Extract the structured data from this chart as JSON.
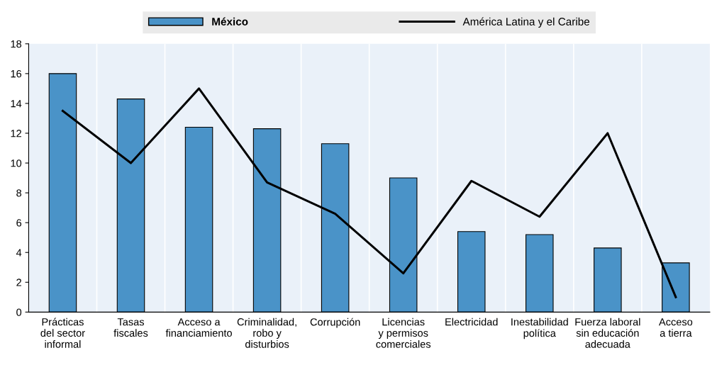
{
  "chart_data": {
    "type": "bar",
    "categories": [
      "Prácticas\ndel sector\ninformal",
      "Tasas\nfiscales",
      "Acceso a\nfinanciamiento",
      "Criminalidad,\nrobo y\ndisturbios",
      "Corrupción",
      "Licencias\ny permisos\ncomerciales",
      "Electricidad",
      "Inestabilidad\npolítica",
      "Fuerza laboral\nsin educación\nadecuada",
      "Acceso\na tierra"
    ],
    "series": [
      {
        "name": "México",
        "color": "#4a93c8",
        "values": [
          16.0,
          14.3,
          12.4,
          12.3,
          11.3,
          9.0,
          5.4,
          5.2,
          4.3,
          3.3
        ]
      },
      {
        "name": "América Latina y el Caribe",
        "type": "line",
        "color": "#000000",
        "values": [
          13.5,
          10.0,
          15.0,
          8.7,
          6.6,
          2.6,
          8.8,
          6.4,
          12.0,
          1.0
        ]
      }
    ],
    "ylim": [
      0,
      18
    ],
    "yticks": [
      0,
      2,
      4,
      6,
      8,
      10,
      12,
      14,
      16,
      18
    ],
    "grid": "x",
    "legend": "top",
    "marker": "none",
    "line_style": "solid"
  }
}
